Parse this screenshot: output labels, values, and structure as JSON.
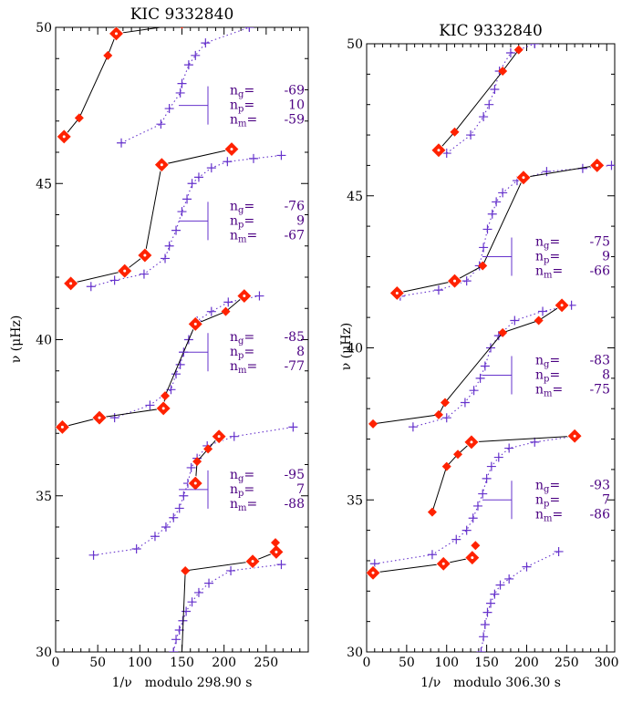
{
  "chart_data": [
    {
      "type": "scatter",
      "title": "KIC 9332840",
      "xlabel_nu": "1/ν",
      "xlabel_rest": "modulo 298.90 s",
      "ylabel": "ν (μHz)",
      "xlim": [
        0,
        300
      ],
      "ylim": [
        30,
        50
      ],
      "xticks": [
        "0",
        "50",
        "100",
        "150",
        "200",
        "250"
      ],
      "yticks": [
        "30",
        "35",
        "40",
        "45",
        "50"
      ],
      "colors": {
        "observed": "#ff2200",
        "model": "#6633cc",
        "connector": "#000000",
        "labels": "#4b0082"
      },
      "groups": [
        {
          "ng": "-69",
          "np": "10",
          "nm": "-59",
          "ref_nu": 47.5,
          "observed": [
            [
              10,
              46.5
            ],
            [
              28,
              47.1
            ],
            [
              62,
              49.1
            ],
            [
              72,
              49.8
            ],
            [
              150,
              50.1
            ]
          ],
          "model": [
            [
              78,
              46.3
            ],
            [
              125,
              46.9
            ],
            [
              135,
              47.4
            ],
            [
              148,
              47.9
            ],
            [
              150,
              48.2
            ],
            [
              158,
              48.8
            ],
            [
              166,
              49.1
            ],
            [
              178,
              49.5
            ],
            [
              230,
              50.0
            ]
          ]
        },
        {
          "ng": "-76",
          "np": "9",
          "nm": "-67",
          "ref_nu": 43.8,
          "observed": [
            [
              18,
              41.8
            ],
            [
              82,
              42.2
            ],
            [
              106,
              42.7
            ],
            [
              126,
              45.6
            ],
            [
              209,
              46.1
            ]
          ],
          "model": [
            [
              42,
              41.7
            ],
            [
              70,
              41.9
            ],
            [
              105,
              42.1
            ],
            [
              130,
              42.6
            ],
            [
              135,
              43.0
            ],
            [
              143,
              43.5
            ],
            [
              150,
              44.1
            ],
            [
              156,
              44.5
            ],
            [
              162,
              45.0
            ],
            [
              170,
              45.2
            ],
            [
              185,
              45.5
            ],
            [
              204,
              45.7
            ],
            [
              235,
              45.8
            ],
            [
              268,
              45.9
            ]
          ]
        },
        {
          "ng": "-85",
          "np": "8",
          "nm": "-77",
          "ref_nu": 39.6,
          "observed": [
            [
              8,
              37.2
            ],
            [
              52,
              37.5
            ],
            [
              128,
              37.8
            ],
            [
              130,
              38.2
            ],
            [
              166,
              40.5
            ],
            [
              202,
              40.9
            ],
            [
              224,
              41.4
            ]
          ],
          "model": [
            [
              70,
              37.5
            ],
            [
              112,
              37.9
            ],
            [
              137,
              38.4
            ],
            [
              143,
              38.9
            ],
            [
              148,
              39.2
            ],
            [
              152,
              39.6
            ],
            [
              158,
              40.0
            ],
            [
              168,
              40.6
            ],
            [
              185,
              40.9
            ],
            [
              205,
              41.2
            ],
            [
              242,
              41.4
            ]
          ]
        },
        {
          "ng": "-95",
          "np": "7",
          "nm": "-88",
          "ref_nu": 35.2,
          "observed": [
            [
              166,
              35.4
            ],
            [
              168,
              36.1
            ],
            [
              181,
              36.5
            ],
            [
              194,
              36.9
            ]
          ],
          "model": [
            [
              45,
              33.1
            ],
            [
              96,
              33.3
            ],
            [
              118,
              33.7
            ],
            [
              131,
              34.0
            ],
            [
              140,
              34.3
            ],
            [
              147,
              34.6
            ],
            [
              152,
              35.0
            ],
            [
              157,
              35.4
            ],
            [
              161,
              35.9
            ],
            [
              168,
              36.2
            ],
            [
              180,
              36.6
            ],
            [
              212,
              36.9
            ],
            [
              282,
              37.2
            ]
          ]
        },
        {
          "ng": "",
          "np": "",
          "nm": "",
          "ref_nu": null,
          "observed": [
            [
              154,
              32.6
            ],
            [
              234,
              32.9
            ],
            [
              262,
              33.2
            ],
            [
              261,
              33.5
            ]
          ],
          "model": [
            [
              140,
              30.0
            ],
            [
              143,
              30.4
            ],
            [
              147,
              30.7
            ],
            [
              151,
              31.0
            ],
            [
              155,
              31.3
            ],
            [
              162,
              31.6
            ],
            [
              170,
              31.9
            ],
            [
              182,
              32.2
            ],
            [
              208,
              32.6
            ],
            [
              268,
              32.8
            ]
          ]
        }
      ],
      "connections": [
        [
          [
            10,
            46.5
          ],
          [
            28,
            47.1
          ],
          [
            62,
            49.1
          ],
          [
            72,
            49.8
          ],
          [
            150,
            50.1
          ]
        ],
        [
          [
            18,
            41.8
          ],
          [
            82,
            42.2
          ],
          [
            106,
            42.7
          ],
          [
            126,
            45.6
          ],
          [
            209,
            46.1
          ]
        ],
        [
          [
            8,
            37.2
          ],
          [
            52,
            37.5
          ],
          [
            128,
            37.8
          ],
          [
            130,
            38.2
          ],
          [
            166,
            40.5
          ],
          [
            202,
            40.9
          ],
          [
            224,
            41.4
          ]
        ],
        [
          [
            166,
            35.4
          ],
          [
            168,
            36.1
          ],
          [
            181,
            36.5
          ],
          [
            194,
            36.9
          ]
        ],
        [
          [
            150,
            30.0
          ],
          [
            154,
            32.6
          ],
          [
            234,
            32.9
          ],
          [
            262,
            33.2
          ]
        ]
      ],
      "big_markers": [
        [
          10,
          46.5
        ],
        [
          72,
          49.8
        ],
        [
          18,
          41.8
        ],
        [
          82,
          42.2
        ],
        [
          106,
          42.7
        ],
        [
          126,
          45.6
        ],
        [
          209,
          46.1
        ],
        [
          8,
          37.2
        ],
        [
          52,
          37.5
        ],
        [
          128,
          37.8
        ],
        [
          166,
          40.5
        ],
        [
          224,
          41.4
        ],
        [
          194,
          36.9
        ],
        [
          166,
          35.4
        ],
        [
          234,
          32.9
        ],
        [
          262,
          33.2
        ]
      ]
    },
    {
      "type": "scatter",
      "title": "KIC 9332840",
      "xlabel_nu": "1/ν",
      "xlabel_rest": "modulo 306.30 s",
      "ylabel": "ν (μHz)",
      "xlim": [
        0,
        310
      ],
      "ylim": [
        30,
        50
      ],
      "xticks": [
        "0",
        "50",
        "100",
        "150",
        "200",
        "250",
        "300"
      ],
      "yticks": [
        "30",
        "35",
        "40",
        "45",
        "50"
      ],
      "colors": {
        "observed": "#ff2200",
        "model": "#6633cc",
        "connector": "#000000",
        "labels": "#4b0082"
      },
      "groups": [
        {
          "ng": "-75",
          "np": "9",
          "nm": "-66",
          "ref_nu": 43.0,
          "observed": [
            [
              90,
              46.5
            ],
            [
              110,
              47.1
            ],
            [
              170,
              49.1
            ],
            [
              190,
              49.8
            ]
          ],
          "model": [
            [
              100,
              46.4
            ],
            [
              130,
              47.0
            ],
            [
              146,
              47.6
            ],
            [
              153,
              48.0
            ],
            [
              160,
              48.5
            ],
            [
              166,
              49.1
            ],
            [
              180,
              49.7
            ],
            [
              210,
              50.0
            ]
          ]
        },
        {
          "ng": "-83",
          "np": "8",
          "nm": "-75",
          "ref_nu": 39.1,
          "observed": [
            [
              38,
              41.8
            ],
            [
              110,
              42.2
            ],
            [
              145,
              42.7
            ],
            [
              196,
              45.6
            ],
            [
              288,
              46.0
            ]
          ],
          "model": [
            [
              42,
              41.7
            ],
            [
              90,
              41.9
            ],
            [
              125,
              42.2
            ],
            [
              141,
              42.7
            ],
            [
              146,
              43.3
            ],
            [
              151,
              43.9
            ],
            [
              157,
              44.4
            ],
            [
              162,
              44.8
            ],
            [
              170,
              45.1
            ],
            [
              188,
              45.5
            ],
            [
              225,
              45.8
            ],
            [
              270,
              45.9
            ],
            [
              306,
              46.0
            ]
          ]
        },
        {
          "ng": "-93",
          "np": "7",
          "nm": "-86",
          "ref_nu": 35.0,
          "observed": [
            [
              8,
              37.5
            ],
            [
              90,
              37.8
            ],
            [
              98,
              38.2
            ],
            [
              170,
              40.5
            ],
            [
              215,
              40.9
            ],
            [
              244,
              41.4
            ]
          ],
          "model": [
            [
              58,
              37.4
            ],
            [
              100,
              37.7
            ],
            [
              123,
              38.2
            ],
            [
              134,
              38.6
            ],
            [
              142,
              39.0
            ],
            [
              148,
              39.4
            ],
            [
              155,
              40.0
            ],
            [
              165,
              40.4
            ],
            [
              185,
              40.9
            ],
            [
              220,
              41.2
            ],
            [
              256,
              41.4
            ]
          ]
        },
        {
          "ng": "",
          "np": "",
          "nm": "",
          "ref_nu": null,
          "observed": [
            [
              82,
              34.6
            ],
            [
              100,
              36.1
            ],
            [
              114,
              36.5
            ],
            [
              131,
              36.9
            ],
            [
              260,
              37.1
            ]
          ],
          "model": [
            [
              10,
              32.9
            ],
            [
              82,
              33.2
            ],
            [
              112,
              33.7
            ],
            [
              125,
              34.0
            ],
            [
              133,
              34.4
            ],
            [
              139,
              34.8
            ],
            [
              145,
              35.2
            ],
            [
              150,
              35.7
            ],
            [
              156,
              36.1
            ],
            [
              165,
              36.4
            ],
            [
              178,
              36.7
            ],
            [
              210,
              36.9
            ],
            [
              262,
              37.1
            ]
          ]
        },
        {
          "ng": "",
          "np": "",
          "nm": "",
          "ref_nu": null,
          "observed": [
            [
              8,
              32.6
            ],
            [
              96,
              32.9
            ],
            [
              132,
              33.1
            ],
            [
              136,
              33.5
            ]
          ],
          "model": [
            [
              143,
              30.0
            ],
            [
              146,
              30.5
            ],
            [
              148,
              30.9
            ],
            [
              151,
              31.3
            ],
            [
              155,
              31.6
            ],
            [
              160,
              31.9
            ],
            [
              167,
              32.2
            ],
            [
              178,
              32.4
            ],
            [
              200,
              32.8
            ],
            [
              240,
              33.3
            ]
          ]
        }
      ],
      "connections": [
        [
          [
            90,
            46.5
          ],
          [
            110,
            47.1
          ],
          [
            170,
            49.1
          ],
          [
            190,
            49.8
          ]
        ],
        [
          [
            38,
            41.8
          ],
          [
            110,
            42.2
          ],
          [
            145,
            42.7
          ],
          [
            196,
            45.6
          ],
          [
            288,
            46.0
          ]
        ],
        [
          [
            8,
            37.5
          ],
          [
            90,
            37.8
          ],
          [
            98,
            38.2
          ],
          [
            170,
            40.5
          ],
          [
            215,
            40.9
          ],
          [
            244,
            41.4
          ]
        ],
        [
          [
            82,
            34.6
          ],
          [
            100,
            36.1
          ],
          [
            114,
            36.5
          ],
          [
            131,
            36.9
          ],
          [
            260,
            37.1
          ]
        ],
        [
          [
            8,
            32.6
          ],
          [
            96,
            32.9
          ],
          [
            132,
            33.1
          ]
        ]
      ],
      "big_markers": [
        [
          90,
          46.5
        ],
        [
          38,
          41.8
        ],
        [
          110,
          42.2
        ],
        [
          196,
          45.6
        ],
        [
          288,
          46.0
        ],
        [
          244,
          41.4
        ],
        [
          131,
          36.9
        ],
        [
          260,
          37.1
        ],
        [
          8,
          32.6
        ],
        [
          96,
          32.9
        ],
        [
          132,
          33.1
        ]
      ]
    }
  ]
}
